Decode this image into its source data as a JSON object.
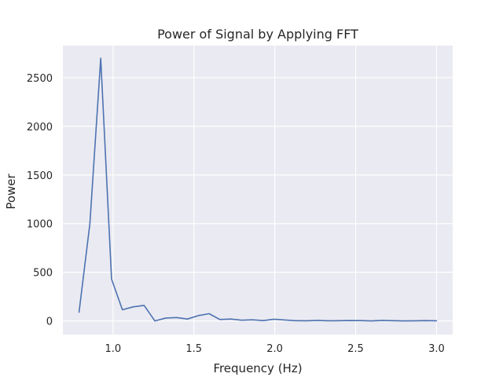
{
  "chart_data": {
    "type": "line",
    "title": "Power of Signal by Applying FFT",
    "xlabel": "Frequency (Hz)",
    "ylabel": "Power",
    "xlim": [
      0.69,
      3.1
    ],
    "ylim": [
      -140,
      2830
    ],
    "xticks": [
      1.0,
      1.5,
      2.0,
      2.5,
      3.0
    ],
    "xtick_labels": [
      "1.0",
      "1.5",
      "2.0",
      "2.5",
      "3.0"
    ],
    "yticks": [
      0,
      500,
      1000,
      1500,
      2000,
      2500
    ],
    "ytick_labels": [
      "0",
      "500",
      "1000",
      "1500",
      "2000",
      "2500"
    ],
    "grid": true,
    "background_color": "#eaeaf2",
    "series_color": "#4c72b0",
    "series": [
      {
        "x": [
          0.79,
          0.857,
          0.924,
          0.991,
          1.058,
          1.125,
          1.192,
          1.259,
          1.326,
          1.393,
          1.46,
          1.527,
          1.594,
          1.661,
          1.728,
          1.795,
          1.862,
          1.929,
          1.996,
          2.063,
          2.13,
          2.197,
          2.264,
          2.331,
          2.398,
          2.465,
          2.532,
          2.599,
          2.666,
          2.733,
          2.8,
          2.867,
          2.934,
          3.0
        ],
        "y": [
          90,
          1000,
          2700,
          430,
          115,
          145,
          160,
          0,
          30,
          35,
          20,
          55,
          75,
          15,
          20,
          8,
          12,
          4,
          18,
          10,
          3,
          2,
          6,
          2,
          3,
          5,
          4,
          1,
          6,
          3,
          1,
          2,
          4,
          2
        ]
      }
    ]
  }
}
